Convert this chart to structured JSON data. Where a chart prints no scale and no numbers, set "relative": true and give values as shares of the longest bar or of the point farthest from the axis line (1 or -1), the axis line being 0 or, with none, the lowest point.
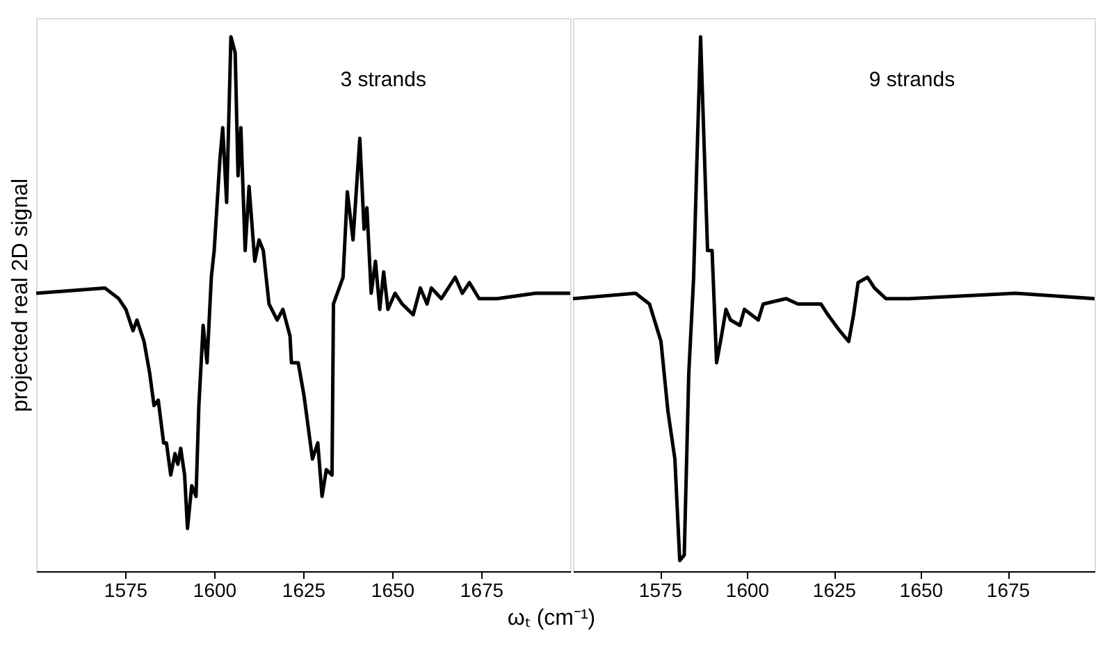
{
  "chart_data": [
    {
      "type": "line",
      "relative": true,
      "ylabel": "projected real 2D signal",
      "xlabel": "ωₜ (cm⁻¹)",
      "annotations": [
        "3 strands"
      ],
      "xlim": [
        1550,
        1700
      ],
      "xticks": [
        1575,
        1600,
        1625,
        1650,
        1675
      ],
      "grid": false,
      "legend": false,
      "series": [
        {
          "color": "#000000",
          "x": [
            1550,
            1569.3,
            1573.2,
            1575.2,
            1577.2,
            1578.3,
            1580.3,
            1581.9,
            1583.1,
            1584.3,
            1585.8,
            1586.6,
            1587.8,
            1589.0,
            1589.8,
            1590.6,
            1591.7,
            1592.5,
            1593.7,
            1594.9,
            1595.7,
            1596.9,
            1598.0,
            1599.2,
            1600.0,
            1601.6,
            1602.4,
            1603.5,
            1604.7,
            1605.9,
            1606.7,
            1607.5,
            1608.7,
            1609.8,
            1611.4,
            1612.6,
            1613.8,
            1615.4,
            1617.7,
            1619.3,
            1621.3,
            1621.7,
            1623.6,
            1625.2,
            1627.6,
            1629.1,
            1630.3,
            1631.5,
            1633.1,
            1633.5,
            1636.2,
            1637.4,
            1639.0,
            1640.9,
            1642.1,
            1642.9,
            1644.1,
            1645.3,
            1646.5,
            1647.6,
            1648.8,
            1650.8,
            1652.8,
            1655.9,
            1657.9,
            1659.8,
            1661.0,
            1663.8,
            1667.7,
            1669.7,
            1671.7,
            1674.4,
            1679.5,
            1690.2,
            1700
          ],
          "values": [
            0.52,
            0.53,
            0.51,
            0.49,
            0.45,
            0.47,
            0.43,
            0.37,
            0.31,
            0.32,
            0.24,
            0.24,
            0.18,
            0.22,
            0.2,
            0.23,
            0.18,
            0.08,
            0.16,
            0.14,
            0.31,
            0.46,
            0.39,
            0.55,
            0.6,
            0.77,
            0.83,
            0.69,
            1.0,
            0.97,
            0.74,
            0.83,
            0.6,
            0.72,
            0.58,
            0.62,
            0.6,
            0.5,
            0.47,
            0.49,
            0.44,
            0.39,
            0.39,
            0.33,
            0.21,
            0.24,
            0.14,
            0.19,
            0.18,
            0.5,
            0.55,
            0.71,
            0.62,
            0.81,
            0.64,
            0.68,
            0.52,
            0.58,
            0.49,
            0.56,
            0.49,
            0.52,
            0.5,
            0.48,
            0.53,
            0.5,
            0.53,
            0.51,
            0.55,
            0.52,
            0.54,
            0.51,
            0.51,
            0.52,
            0.52
          ]
        }
      ]
    },
    {
      "type": "line",
      "relative": true,
      "annotations": [
        "9 strands"
      ],
      "xlim": [
        1550,
        1700
      ],
      "xticks": [
        1575,
        1600,
        1625,
        1650,
        1675
      ],
      "grid": false,
      "legend": false,
      "series": [
        {
          "color": "#000000",
          "x": [
            1550,
            1568,
            1572,
            1575.3,
            1577.3,
            1579.3,
            1580.7,
            1582,
            1583.3,
            1584.7,
            1585.6,
            1586.7,
            1587.7,
            1588.7,
            1590,
            1591.3,
            1592.7,
            1594,
            1595.3,
            1598,
            1599.3,
            1603.3,
            1604.7,
            1611.3,
            1614.7,
            1621.3,
            1623.3,
            1626.7,
            1629.3,
            1630.7,
            1632,
            1634.7,
            1636.7,
            1640,
            1646.7,
            1677.3,
            1700
          ],
          "values": [
            0.51,
            0.52,
            0.5,
            0.43,
            0.3,
            0.21,
            0.02,
            0.03,
            0.37,
            0.55,
            0.76,
            1.0,
            0.8,
            0.6,
            0.6,
            0.39,
            0.44,
            0.49,
            0.47,
            0.46,
            0.49,
            0.47,
            0.5,
            0.51,
            0.5,
            0.5,
            0.48,
            0.45,
            0.43,
            0.48,
            0.54,
            0.55,
            0.53,
            0.51,
            0.51,
            0.52,
            0.51
          ]
        }
      ]
    }
  ]
}
